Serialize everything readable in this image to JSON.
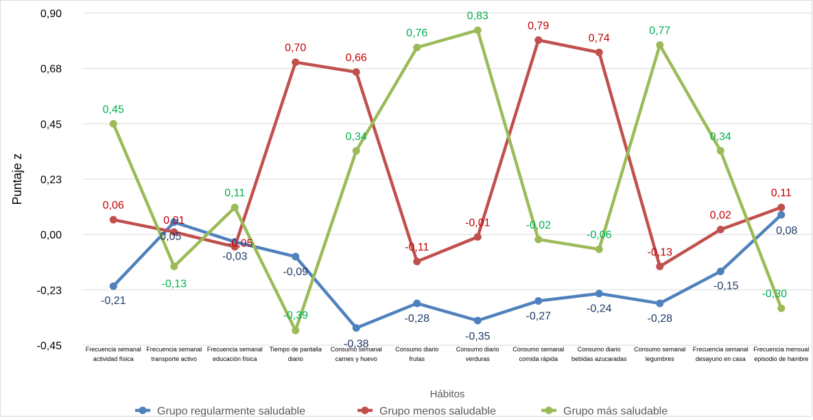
{
  "chart_data": {
    "type": "line",
    "xlabel": "Hábitos",
    "ylabel": "Puntaje z",
    "ylim": [
      -0.45,
      0.9
    ],
    "yticks": [
      "0,90",
      "0,68",
      "0,45",
      "0,23",
      "0,00",
      "-0,23",
      "-0,45"
    ],
    "ytick_values": [
      0.9,
      0.675,
      0.45,
      0.225,
      0.0,
      -0.225,
      -0.45
    ],
    "categories": [
      [
        "Frecuencia semanal",
        "actividad física"
      ],
      [
        "Frecuencia semanal",
        "transporte activo"
      ],
      [
        "Frecuencia semanal",
        "educación física"
      ],
      [
        "Tiempo de pantalla",
        "diario"
      ],
      [
        "Consumo semanal",
        "carnes y huevo"
      ],
      [
        "Consumo diario",
        "frutas"
      ],
      [
        "Consumo diario",
        "verduras"
      ],
      [
        "Consumo semanal",
        "comida rápida"
      ],
      [
        "Consumo diario",
        "bebidas azucaradas"
      ],
      [
        "Consumo semanal",
        "legumbres"
      ],
      [
        "Frecuencia semanal",
        "desayuno en casa"
      ],
      [
        "Frecuencia mensual",
        "episodio de hambre"
      ]
    ],
    "grid": true,
    "legend_position": "bottom",
    "series": [
      {
        "name": "Grupo regularmente saludable",
        "color": "#4f81bd",
        "label_color": "#1f3864",
        "values": [
          -0.21,
          0.05,
          -0.03,
          -0.09,
          -0.38,
          -0.28,
          -0.35,
          -0.27,
          -0.24,
          -0.28,
          -0.15,
          0.08
        ],
        "labels": [
          "-0,21",
          "0,05",
          "-0,03",
          "-0,09",
          "-0,38",
          "-0,28",
          "-0,35",
          "-0,27",
          "-0,24",
          "-0,28",
          "-0,15",
          "0,08"
        ]
      },
      {
        "name": "Grupo menos saludable",
        "color": "#c0504d",
        "label_color": "#c00000",
        "values": [
          0.06,
          0.01,
          -0.05,
          0.7,
          0.66,
          -0.11,
          -0.01,
          0.79,
          0.74,
          -0.13,
          0.02,
          0.11
        ],
        "labels": [
          "0,06",
          "0,01",
          "-0,05",
          "0,70",
          "0,66",
          "-0,11",
          "-0,01",
          "0,79",
          "0,74",
          "-0,13",
          "0,02",
          "0,11"
        ]
      },
      {
        "name": "Grupo más saludable",
        "color": "#9bbb59",
        "label_color": "#00b050",
        "values": [
          0.45,
          -0.13,
          0.11,
          -0.39,
          0.34,
          0.76,
          0.83,
          -0.02,
          -0.06,
          0.77,
          0.34,
          -0.3
        ],
        "labels": [
          "0,45",
          "-0,13",
          "0,11",
          "-0,39",
          "0,34",
          "0,76",
          "0,83",
          "-0,02",
          "-0,06",
          "0,77",
          "0,34",
          "-0,30"
        ]
      }
    ]
  }
}
